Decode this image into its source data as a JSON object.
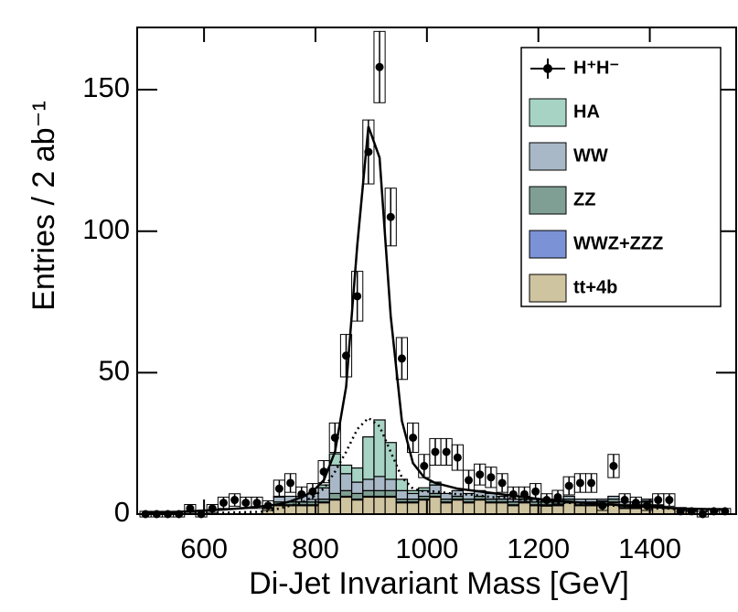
{
  "chart_data": {
    "type": "histogram-stack",
    "xlabel": "Di-Jet Invariant Mass [GeV]",
    "ylabel": "Entries / 2 ab⁻¹",
    "xlim": [
      480,
      1555
    ],
    "ylim": [
      0,
      172
    ],
    "xticks": [
      600,
      800,
      1000,
      1200,
      1400
    ],
    "yticks": [
      0,
      50,
      100,
      150
    ],
    "x": [
      495,
      515,
      535,
      555,
      575,
      595,
      615,
      635,
      655,
      675,
      695,
      715,
      735,
      755,
      775,
      795,
      815,
      835,
      855,
      875,
      895,
      915,
      935,
      955,
      975,
      995,
      1015,
      1035,
      1055,
      1075,
      1095,
      1115,
      1135,
      1155,
      1175,
      1195,
      1215,
      1235,
      1255,
      1275,
      1295,
      1315,
      1335,
      1355,
      1375,
      1395,
      1415,
      1435,
      1455,
      1475,
      1495,
      1515,
      1535
    ],
    "bin_width": 20,
    "points": {
      "name": "H⁺H⁻",
      "color": "#000000",
      "values": [
        0,
        0,
        0,
        0,
        2,
        0,
        2,
        4,
        5,
        4,
        4,
        3,
        9,
        11,
        7,
        8,
        15,
        27,
        56,
        77,
        128,
        158,
        105,
        55,
        27,
        17,
        22,
        22,
        20,
        12,
        14,
        13,
        11,
        7,
        7,
        8,
        5,
        6,
        10,
        11,
        11,
        3,
        17,
        5,
        4,
        3,
        5,
        5,
        1,
        1,
        0,
        1,
        1
      ],
      "errors": [
        1,
        1,
        1,
        1,
        1.4,
        1,
        1.4,
        2,
        2.2,
        2,
        2,
        1.7,
        3,
        3.3,
        2.6,
        2.8,
        3.9,
        5.2,
        7.5,
        8.8,
        11.3,
        12.6,
        10.2,
        7.4,
        5.2,
        4.1,
        4.7,
        4.7,
        4.5,
        3.5,
        3.7,
        3.6,
        3.3,
        2.6,
        2.6,
        2.8,
        2.2,
        2.4,
        3.2,
        3.3,
        3.3,
        1.7,
        4.1,
        2.2,
        2,
        1.7,
        2.2,
        2.2,
        1,
        1,
        1,
        1,
        1
      ]
    },
    "series": [
      {
        "name": "tt+4b",
        "color": "#cfc4a0",
        "values": [
          0,
          0,
          0,
          0,
          0,
          0,
          0,
          0,
          0,
          0,
          0,
          2,
          3,
          3,
          3,
          3,
          4,
          5,
          6,
          5,
          6,
          6,
          6,
          4,
          4,
          5,
          6,
          4,
          5,
          4,
          5,
          4,
          4,
          3,
          4,
          3,
          3,
          3,
          4,
          3,
          3,
          3,
          4,
          2,
          2,
          3,
          3,
          2,
          2,
          1,
          0,
          0,
          0
        ]
      },
      {
        "name": "WWZ+ZZZ",
        "color": "#7b93d6",
        "values": [
          0,
          0,
          0,
          0,
          0,
          0,
          0,
          0,
          0,
          0,
          0,
          0.3,
          0.3,
          0.3,
          0.3,
          0.3,
          0.3,
          0.3,
          0.3,
          0.3,
          0.3,
          0.3,
          0.3,
          0.3,
          0.3,
          0.3,
          0.3,
          0.3,
          0.3,
          0.3,
          0.3,
          0.3,
          0.3,
          0.3,
          0.3,
          0.3,
          0.3,
          0.3,
          0.3,
          0.3,
          0.3,
          0.3,
          0.3,
          0.3,
          0.3,
          0.3,
          0.3,
          0.3,
          0.3,
          0.3,
          0,
          0,
          0
        ]
      },
      {
        "name": "ZZ",
        "color": "#7f9f94",
        "values": [
          0,
          0,
          0,
          0,
          0,
          0,
          0,
          0,
          0,
          0,
          0,
          0,
          1,
          1,
          1,
          1,
          1,
          2,
          2,
          2,
          2,
          2,
          2,
          1,
          1,
          1,
          1,
          1,
          1,
          1,
          1,
          1,
          1,
          1,
          1,
          1,
          1,
          1,
          1,
          1,
          1,
          1,
          1,
          1,
          1,
          1,
          0,
          0,
          0,
          0,
          0,
          0,
          0
        ]
      },
      {
        "name": "WW",
        "color": "#a9b8c6",
        "values": [
          0,
          0,
          0,
          0,
          0,
          0,
          0,
          0,
          0,
          0,
          0,
          0,
          2,
          2,
          2,
          3,
          4,
          10,
          6,
          4,
          4,
          5,
          4,
          3,
          2,
          2,
          3,
          2,
          2,
          2,
          2,
          2,
          1,
          1,
          1,
          1,
          1,
          1,
          1,
          1,
          1,
          1,
          1,
          1,
          1,
          1,
          0,
          0,
          0,
          0,
          0,
          0,
          0
        ]
      },
      {
        "name": "HA",
        "color": "#a6d3c4",
        "values": [
          0,
          0,
          0,
          0,
          0,
          0,
          0,
          0,
          0,
          0,
          0,
          0,
          0,
          0,
          0,
          0,
          1,
          4,
          3,
          5,
          15,
          20,
          13,
          4,
          1,
          1,
          1,
          0,
          0,
          0,
          0,
          0,
          0,
          0,
          0,
          0,
          0,
          0,
          0,
          0,
          0,
          0,
          0,
          0,
          0,
          0,
          0,
          0,
          0,
          0,
          0,
          0,
          0
        ]
      }
    ],
    "curves": [
      {
        "color": "#000000",
        "dash": "solid",
        "values": [
          0.5,
          0.6,
          0.7,
          0.8,
          1,
          1.2,
          1.4,
          1.6,
          1.9,
          2.2,
          2.6,
          3,
          3.5,
          4.5,
          6,
          8,
          12,
          22,
          45,
          95,
          137,
          126,
          70,
          33,
          18,
          13,
          11,
          10,
          9,
          8.5,
          8,
          7.5,
          7,
          6.5,
          6,
          5.5,
          5,
          4.7,
          4.4,
          4.1,
          3.8,
          3.5,
          3.3,
          3,
          2.8,
          2.6,
          2.4,
          2.2,
          2,
          1.9,
          1.8,
          1.7,
          1.6
        ]
      },
      {
        "color": "#000000",
        "dash": "dotted",
        "values": [
          0.1,
          0.1,
          0.2,
          0.2,
          0.3,
          0.3,
          0.4,
          0.5,
          0.6,
          0.7,
          0.8,
          1,
          2,
          3,
          4,
          6,
          9,
          15,
          22,
          30,
          34,
          31,
          22,
          13,
          9,
          8,
          8,
          7.5,
          7,
          7,
          6.5,
          6,
          6,
          5.5,
          5,
          5,
          4.5,
          4,
          4,
          3.5,
          3.5,
          3,
          3,
          2.5,
          2.5,
          2,
          2,
          2,
          1.5,
          1.5,
          1,
          1,
          1
        ]
      }
    ]
  }
}
